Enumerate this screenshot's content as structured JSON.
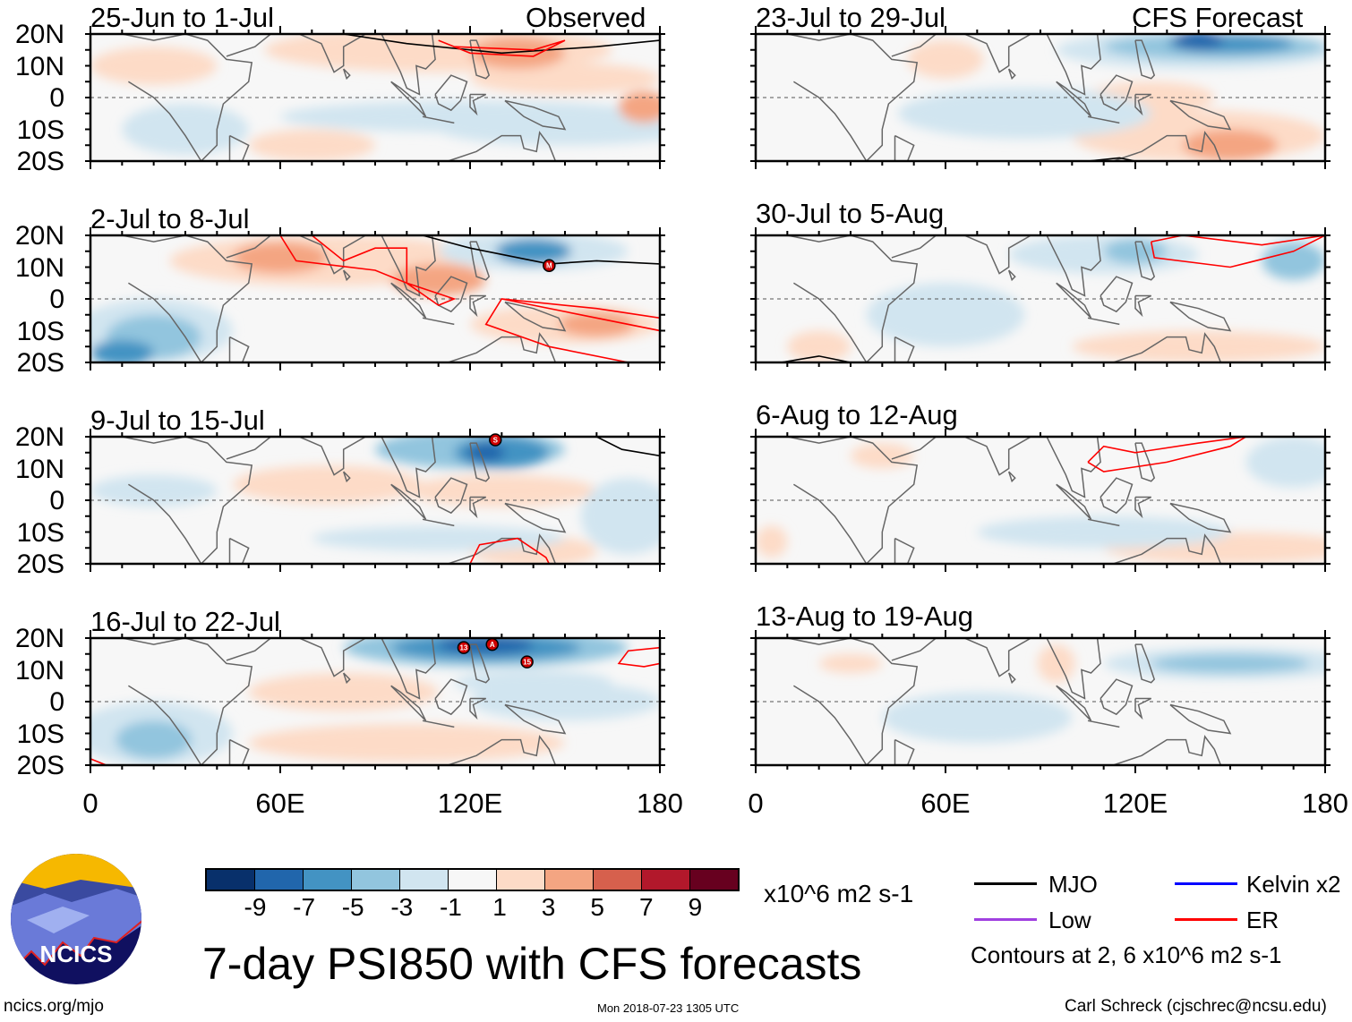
{
  "header": {
    "observed": "Observed",
    "forecast": "CFS Forecast"
  },
  "panels": [
    {
      "title": "25-Jun to 1-Jul",
      "column": "observed"
    },
    {
      "title": "2-Jul to 8-Jul",
      "column": "observed"
    },
    {
      "title": "9-Jul to 15-Jul",
      "column": "observed"
    },
    {
      "title": "16-Jul to 22-Jul",
      "column": "observed"
    },
    {
      "title": "23-Jul to 29-Jul",
      "column": "forecast"
    },
    {
      "title": "30-Jul to 5-Aug",
      "column": "forecast"
    },
    {
      "title": "6-Aug to 12-Aug",
      "column": "forecast"
    },
    {
      "title": "13-Aug to 19-Aug",
      "column": "forecast"
    }
  ],
  "lat_labels": [
    "20N",
    "10N",
    "0",
    "10S",
    "20S"
  ],
  "lon_labels": [
    "0",
    "60E",
    "120E",
    "180"
  ],
  "storms": [
    {
      "panel": 1,
      "label": "M"
    },
    {
      "panel": 2,
      "label": "S"
    },
    {
      "panel": 3,
      "label": "13"
    },
    {
      "panel": 3,
      "label": "A"
    },
    {
      "panel": 3,
      "label": "15"
    }
  ],
  "colorbar": {
    "colors": [
      "#08306b",
      "#2166ac",
      "#4393c3",
      "#92c5de",
      "#d1e5f0",
      "#f7f7f7",
      "#fddbc7",
      "#f4a582",
      "#d6604d",
      "#b2182b",
      "#67001f"
    ],
    "ticks": [
      "-9",
      "-7",
      "-5",
      "-3",
      "-1",
      "1",
      "3",
      "5",
      "7",
      "9"
    ],
    "units": "x10^6 m2 s-1"
  },
  "legend": {
    "mjo": "MJO",
    "kelvin": "Kelvin x2",
    "low": "Low",
    "er": "ER",
    "mjo_color": "#000000",
    "kelvin_color": "#0000ff",
    "low_color": "#a040e0",
    "er_color": "#ff0000",
    "contours": "Contours at 2, 6 x10^6 m2 s-1"
  },
  "title": "7-day PSI850 with CFS forecasts",
  "logo_text": "NCICS",
  "footer": {
    "url": "ncics.org/mjo",
    "timestamp": "Mon 2018-07-23 1305 UTC",
    "author": "Carl Schreck (cjschrec@ncsu.edu)"
  }
}
